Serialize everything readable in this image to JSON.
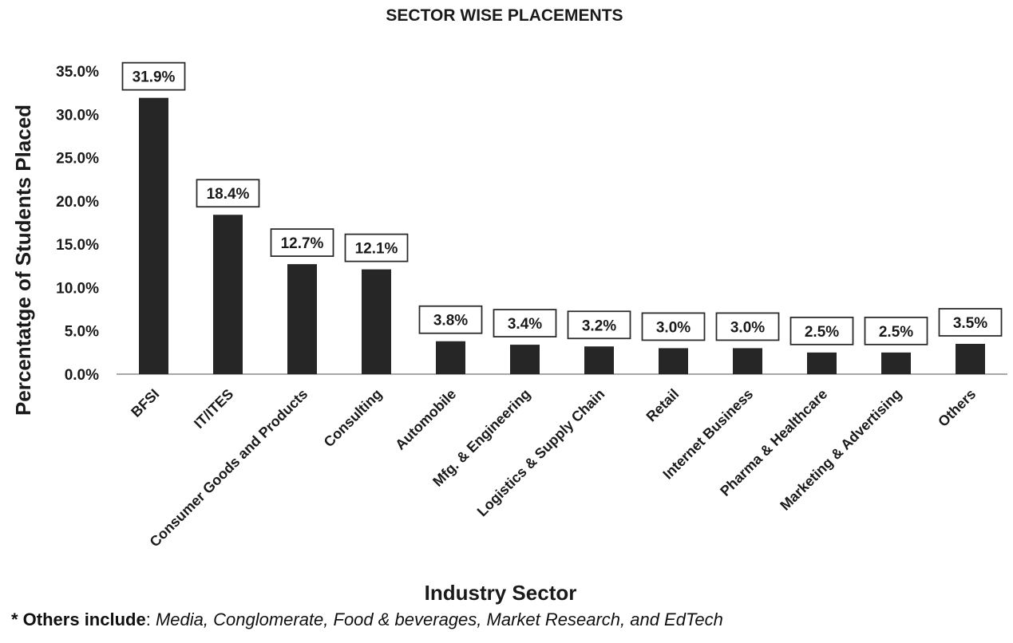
{
  "chart_data": {
    "type": "bar",
    "title": "SECTOR WISE PLACEMENTS",
    "xlabel": "Industry Sector",
    "ylabel": "Percentatge of Students Placed",
    "categories": [
      "BFSI",
      "IT/ITES",
      "Consumer Goods and Products",
      "Consulting",
      "Automobile",
      "Mfg. & Engineering",
      "Logistics & Supply Chain",
      "Retail",
      "Internet Business",
      "Pharma & Healthcare",
      "Marketing & Advertising",
      "Others"
    ],
    "values": [
      31.9,
      18.4,
      12.7,
      12.1,
      3.8,
      3.4,
      3.2,
      3.0,
      3.0,
      2.5,
      2.5,
      3.5
    ],
    "data_labels": [
      "31.9%",
      "18.4%",
      "12.7%",
      "12.1%",
      "3.8%",
      "3.4%",
      "3.2%",
      "3.0%",
      "3.0%",
      "2.5%",
      "2.5%",
      "3.5%"
    ],
    "ylim": [
      0,
      35
    ],
    "yticks": [
      0,
      5,
      10,
      15,
      20,
      25,
      30,
      35
    ],
    "ytick_labels": [
      "0.0%",
      "5.0%",
      "10.0%",
      "15.0%",
      "20.0%",
      "25.0%",
      "30.0%",
      "35.0%"
    ],
    "grid": false,
    "legend": "none",
    "bar_color": "#262626"
  },
  "footnote": {
    "label": "* Others include",
    "separator": ": ",
    "text": "Media, Conglomerate, Food & beverages, Market Research, and EdTech"
  }
}
